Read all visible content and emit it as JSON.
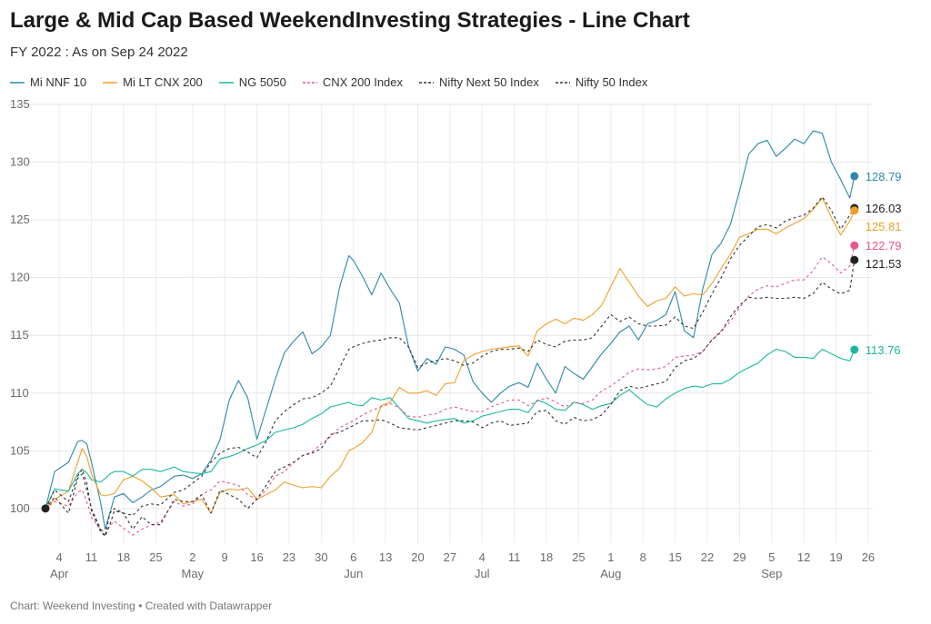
{
  "chart_data": {
    "type": "line",
    "title": "Large & Mid Cap Based WeekendInvesting Strategies - Line Chart",
    "subtitle": "FY 2022 : As on Sep 24 2022",
    "footer": "Chart: Weekend Investing • Created with Datawrapper",
    "ylim": [
      97,
      135
    ],
    "yticks": [
      "100",
      "105",
      "110",
      "115",
      "120",
      "125",
      "130",
      "135"
    ],
    "xlim": [
      0,
      176
    ],
    "xticks": [
      {
        "x": 3,
        "label": "4"
      },
      {
        "x": 10,
        "label": "11"
      },
      {
        "x": 17,
        "label": "18"
      },
      {
        "x": 24,
        "label": "25"
      },
      {
        "x": 32,
        "label": "2"
      },
      {
        "x": 39,
        "label": "9"
      },
      {
        "x": 46,
        "label": "16"
      },
      {
        "x": 53,
        "label": "23"
      },
      {
        "x": 60,
        "label": "30"
      },
      {
        "x": 67,
        "label": "6"
      },
      {
        "x": 74,
        "label": "13"
      },
      {
        "x": 81,
        "label": "20"
      },
      {
        "x": 88,
        "label": "27"
      },
      {
        "x": 95,
        "label": "4"
      },
      {
        "x": 102,
        "label": "11"
      },
      {
        "x": 109,
        "label": "18"
      },
      {
        "x": 116,
        "label": "25"
      },
      {
        "x": 123,
        "label": "1"
      },
      {
        "x": 130,
        "label": "8"
      },
      {
        "x": 137,
        "label": "15"
      },
      {
        "x": 144,
        "label": "22"
      },
      {
        "x": 151,
        "label": "29"
      },
      {
        "x": 158,
        "label": "5"
      },
      {
        "x": 165,
        "label": "12"
      },
      {
        "x": 172,
        "label": "19"
      },
      {
        "x": 179,
        "label": "26"
      }
    ],
    "months": [
      {
        "x": 3,
        "label": "Apr"
      },
      {
        "x": 32,
        "label": "May"
      },
      {
        "x": 67,
        "label": "Jun"
      },
      {
        "x": 95,
        "label": "Jul"
      },
      {
        "x": 123,
        "label": "Aug"
      },
      {
        "x": 158,
        "label": "Sep"
      }
    ],
    "x": [
      0,
      2,
      5,
      7,
      8,
      9,
      10,
      12,
      13,
      14,
      15,
      17,
      19,
      21,
      23,
      25,
      28,
      30,
      32,
      34,
      36,
      38,
      40,
      42,
      44,
      46,
      48,
      50,
      52,
      54,
      56,
      58,
      60,
      62,
      64,
      66,
      67,
      69,
      71,
      73,
      75,
      77,
      79,
      81,
      83,
      85,
      87,
      89,
      91,
      93,
      95,
      97,
      99,
      101,
      103,
      105,
      107,
      109,
      111,
      113,
      115,
      117,
      119,
      121,
      123,
      125,
      127,
      129,
      131,
      133,
      135,
      137,
      139,
      141,
      143,
      145,
      147,
      149,
      151,
      153,
      155,
      157,
      159,
      161,
      163,
      165,
      167,
      169,
      171,
      173,
      175,
      176
    ],
    "series": [
      {
        "name": "Mi NNF 10",
        "color": "#2c88a8",
        "dash": false,
        "end": 128.79,
        "end_label": "128.79",
        "values": [
          100,
          103.2,
          104.0,
          105.8,
          105.9,
          105.6,
          104.0,
          100.5,
          98.2,
          99.6,
          101.0,
          101.3,
          100.5,
          101.0,
          101.6,
          101.9,
          102.8,
          102.9,
          102.6,
          103.0,
          104.2,
          106.0,
          109.4,
          111.1,
          109.6,
          106.0,
          108.6,
          111.2,
          113.5,
          114.5,
          115.3,
          113.4,
          114.0,
          115.0,
          119.2,
          121.9,
          121.5,
          120.1,
          118.5,
          120.4,
          119.0,
          117.8,
          114.0,
          111.9,
          113.0,
          112.5,
          114.0,
          113.8,
          113.3,
          111.0,
          110.0,
          109.2,
          110.0,
          110.6,
          110.9,
          110.5,
          112.6,
          111.2,
          110.0,
          112.3,
          111.7,
          111.2,
          112.3,
          113.4,
          114.3,
          115.3,
          115.8,
          114.6,
          116.0,
          116.3,
          116.8,
          118.8,
          115.4,
          114.8,
          119.0,
          122.0,
          123.0,
          124.6,
          127.5,
          130.7,
          131.6,
          131.9,
          130.5,
          131.2,
          132.0,
          131.6,
          132.7,
          132.5,
          130.0,
          128.5,
          126.9,
          128.79
        ]
      },
      {
        "name": "Mi LT CNX 200",
        "color": "#f0a02a",
        "dash": false,
        "end": 125.81,
        "end_label": "125.81",
        "values": [
          100,
          100.8,
          101.5,
          104.0,
          105.2,
          104.5,
          103.0,
          101.2,
          101.1,
          101.2,
          101.3,
          102.5,
          102.8,
          102.4,
          101.8,
          101.0,
          101.2,
          100.4,
          100.6,
          100.8,
          99.6,
          101.4,
          101.7,
          101.6,
          101.8,
          100.8,
          101.2,
          101.6,
          102.3,
          102.0,
          101.8,
          101.9,
          101.8,
          102.8,
          103.5,
          105.0,
          105.2,
          105.7,
          106.6,
          108.9,
          109.2,
          110.5,
          110.0,
          110.0,
          110.2,
          109.8,
          110.8,
          110.9,
          112.8,
          113.3,
          113.6,
          113.8,
          113.9,
          114.0,
          114.1,
          113.2,
          115.4,
          116.0,
          116.4,
          116.0,
          116.5,
          116.3,
          116.8,
          117.6,
          119.2,
          120.8,
          119.6,
          118.4,
          117.5,
          118.0,
          118.2,
          119.2,
          118.4,
          118.6,
          118.5,
          119.5,
          120.8,
          122.0,
          123.5,
          123.8,
          124.2,
          124.2,
          123.8,
          124.3,
          124.7,
          125.1,
          125.9,
          126.9,
          125.2,
          123.7,
          124.9,
          125.81
        ]
      },
      {
        "name": "NG 5050",
        "color": "#18b9a0",
        "dash": false,
        "end": 113.76,
        "end_label": "113.76",
        "values": [
          100,
          101.7,
          101.5,
          103.0,
          103.4,
          103.1,
          102.5,
          102.3,
          102.6,
          103.0,
          103.2,
          103.2,
          102.8,
          103.4,
          103.4,
          103.2,
          103.6,
          103.2,
          103.1,
          103.0,
          103.2,
          104.3,
          104.5,
          104.8,
          105.2,
          105.5,
          105.9,
          106.6,
          106.8,
          107.0,
          107.3,
          107.8,
          108.2,
          108.8,
          109.0,
          109.2,
          109.0,
          108.9,
          109.6,
          109.4,
          109.6,
          108.7,
          107.8,
          107.6,
          107.4,
          107.6,
          107.7,
          107.8,
          107.4,
          107.6,
          108.0,
          108.2,
          108.4,
          108.6,
          108.6,
          108.3,
          109.4,
          109.1,
          108.6,
          108.5,
          109.2,
          109.0,
          108.6,
          108.9,
          109.1,
          109.8,
          110.3,
          109.6,
          109.0,
          108.8,
          109.5,
          110.0,
          110.4,
          110.6,
          110.5,
          110.8,
          110.8,
          111.2,
          111.8,
          112.2,
          112.6,
          113.3,
          113.8,
          113.6,
          113.1,
          113.1,
          113.0,
          113.8,
          113.4,
          113.0,
          112.8,
          113.76
        ]
      },
      {
        "name": "CNX 200 Index",
        "color": "#e8578a",
        "dash": true,
        "end": 122.79,
        "end_label": "122.79",
        "values": [
          100,
          100.6,
          100.2,
          101.4,
          101.6,
          100.6,
          99.2,
          98.2,
          97.8,
          98.5,
          98.9,
          98.3,
          97.7,
          98.2,
          98.6,
          98.8,
          100.6,
          100.2,
          100.4,
          101.2,
          101.6,
          102.4,
          102.2,
          102.0,
          101.2,
          100.8,
          101.6,
          102.8,
          103.2,
          104.0,
          104.6,
          104.9,
          105.6,
          106.2,
          107.0,
          107.4,
          107.6,
          108.1,
          108.5,
          108.8,
          109.1,
          108.7,
          108.0,
          107.9,
          108.1,
          108.2,
          108.6,
          108.8,
          108.6,
          108.4,
          108.4,
          108.8,
          109.1,
          109.4,
          109.4,
          108.9,
          109.3,
          109.6,
          109.2,
          108.8,
          109.2,
          109.1,
          109.4,
          110.2,
          110.6,
          111.2,
          111.8,
          112.1,
          112.0,
          112.1,
          112.3,
          113.1,
          113.2,
          113.3,
          113.6,
          114.6,
          115.4,
          116.2,
          117.4,
          118.4,
          119.0,
          119.3,
          119.2,
          119.5,
          119.8,
          119.8,
          120.6,
          121.8,
          121.2,
          120.4,
          121.0,
          122.79
        ]
      },
      {
        "name": "Nifty Next 50 Index",
        "color": "#333333",
        "dash": true,
        "end": 121.53,
        "end_label": "121.53",
        "values": [
          100,
          101.0,
          99.6,
          102.6,
          103.0,
          101.6,
          100.0,
          98.2,
          97.6,
          98.6,
          99.8,
          99.6,
          98.2,
          99.3,
          98.6,
          98.6,
          100.8,
          100.6,
          100.6,
          101.2,
          99.6,
          101.6,
          101.2,
          100.8,
          100.0,
          100.8,
          102.0,
          103.2,
          103.6,
          104.0,
          104.6,
          104.8,
          105.2,
          106.4,
          106.6,
          107.0,
          107.2,
          107.6,
          107.6,
          107.7,
          107.4,
          107.0,
          106.9,
          106.8,
          107.0,
          107.2,
          107.4,
          107.6,
          107.6,
          107.5,
          107.0,
          107.4,
          107.6,
          107.2,
          107.3,
          107.4,
          108.4,
          108.5,
          107.6,
          107.3,
          107.9,
          107.6,
          107.7,
          108.1,
          109.0,
          110.2,
          110.6,
          110.4,
          110.6,
          110.8,
          111.0,
          112.2,
          112.8,
          113.0,
          113.6,
          114.6,
          115.3,
          116.6,
          117.6,
          118.3,
          118.2,
          118.3,
          118.2,
          118.2,
          118.3,
          118.2,
          118.6,
          119.6,
          119.0,
          118.6,
          118.9,
          121.53
        ]
      },
      {
        "name": "Nifty 50 Index",
        "color": "#333333",
        "dash": true,
        "end": 126.03,
        "end_label": "126.03",
        "values": [
          100,
          101.6,
          100.6,
          102.8,
          103.4,
          102.2,
          99.8,
          98.0,
          97.6,
          99.6,
          100.0,
          99.6,
          99.4,
          100.2,
          100.4,
          100.3,
          101.4,
          101.6,
          102.2,
          102.8,
          104.0,
          104.8,
          105.2,
          105.3,
          104.9,
          104.4,
          105.8,
          107.6,
          108.4,
          109.0,
          109.5,
          109.6,
          110.0,
          110.6,
          112.2,
          113.8,
          114.0,
          114.3,
          114.5,
          114.6,
          114.8,
          114.8,
          114.0,
          112.2,
          112.6,
          112.8,
          113.0,
          112.8,
          112.4,
          112.6,
          113.2,
          113.6,
          113.8,
          113.8,
          113.9,
          113.6,
          114.6,
          114.2,
          114.0,
          114.5,
          114.6,
          114.6,
          114.8,
          115.8,
          116.8,
          116.2,
          116.6,
          116.0,
          115.8,
          115.8,
          115.9,
          116.6,
          115.8,
          115.6,
          117.0,
          118.6,
          120.0,
          121.6,
          122.8,
          123.6,
          124.4,
          124.6,
          124.3,
          124.9,
          125.2,
          125.4,
          126.0,
          127.0,
          125.8,
          124.2,
          125.4,
          126.03
        ]
      }
    ]
  }
}
